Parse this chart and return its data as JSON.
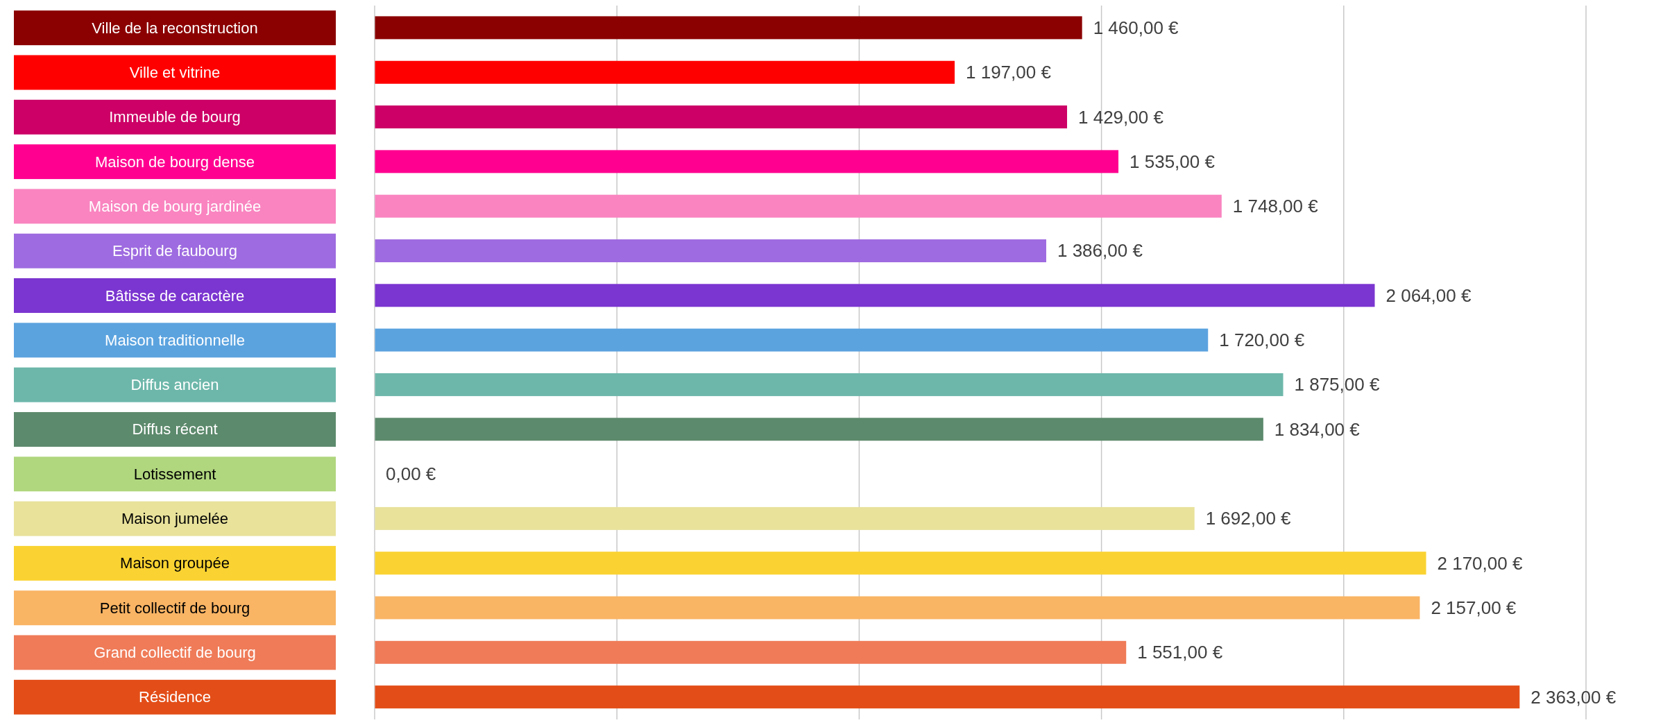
{
  "chart_data": {
    "type": "bar",
    "orientation": "horizontal",
    "categories": [
      "Ville de la reconstruction",
      "Ville et vitrine",
      "Immeuble de bourg",
      "Maison de bourg dense",
      "Maison de bourg jardinée",
      "Esprit de faubourg",
      "Bâtisse de caractère",
      "Maison traditionnelle",
      "Diffus ancien",
      "Diffus récent",
      "Lotissement",
      "Maison jumelée",
      "Maison groupée",
      "Petit collectif de bourg",
      "Grand collectif de bourg",
      "Résidence"
    ],
    "values": [
      1460,
      1197,
      1429,
      1535,
      1748,
      1386,
      2064,
      1720,
      1875,
      1834,
      0,
      1692,
      2170,
      2157,
      1551,
      2363
    ],
    "value_labels": [
      "1 460,00 €",
      "1 197,00 €",
      "1 429,00 €",
      "1 535,00 €",
      "1 748,00 €",
      "1 386,00 €",
      "2 064,00 €",
      "1 720,00 €",
      "1 875,00 €",
      "1 834,00 €",
      "0,00 €",
      "1 692,00 €",
      "2 170,00 €",
      "2 157,00 €",
      "1 551,00 €",
      "2 363,00 €"
    ],
    "colors": [
      "#8b0000",
      "#ff0000",
      "#cc0066",
      "#ff0090",
      "#f984c0",
      "#9e6be0",
      "#7b35d0",
      "#5ba3df",
      "#6db7aa",
      "#5c8a6c",
      "#b0d67e",
      "#e8e29b",
      "#fad332",
      "#f9b464",
      "#ef7b58",
      "#e34e18"
    ],
    "xlim": [
      0,
      2500
    ],
    "grid": "x",
    "tick_labels": "y"
  }
}
